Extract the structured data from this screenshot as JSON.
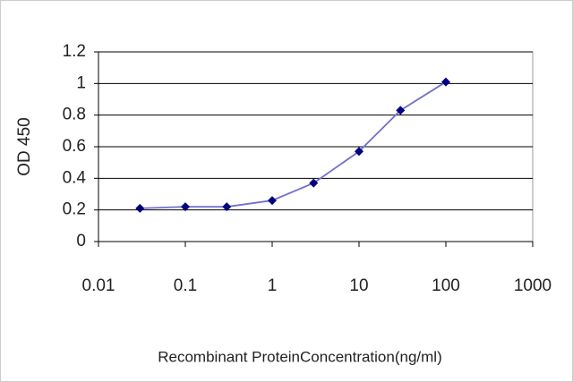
{
  "chart_data": {
    "type": "line",
    "x_label": "Recombinant ProteinConcentration(ng/ml)",
    "y_label": "OD 450",
    "x": [
      0.03,
      0.1,
      0.3,
      1,
      3,
      10,
      30,
      100
    ],
    "series": [
      {
        "color": "#000080",
        "line_color": "#7070cc",
        "values": [
          0.21,
          0.22,
          0.22,
          0.26,
          0.37,
          0.57,
          0.83,
          1.01
        ]
      }
    ],
    "x_log": true,
    "xlim": [
      0.01,
      1000
    ],
    "xticks": [
      0.01,
      0.1,
      1,
      10,
      100,
      1000
    ],
    "ylim": [
      0,
      1.2
    ],
    "yticks": [
      0,
      0.2,
      0.4,
      0.6,
      0.8,
      1,
      1.2
    ],
    "grid": true
  }
}
